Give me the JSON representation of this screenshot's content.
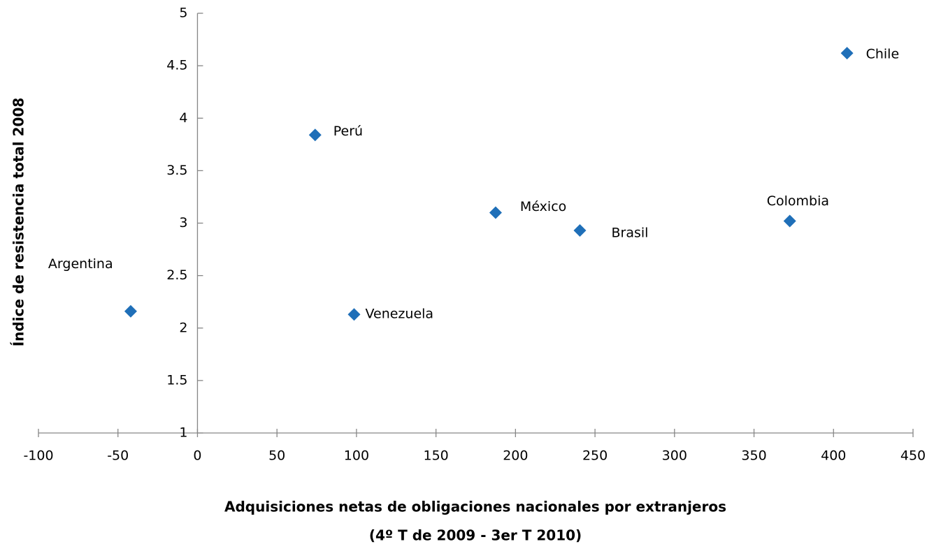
{
  "chart_data": {
    "type": "scatter",
    "xlabel": [
      "Adquisiciones netas de obligaciones nacionales por extranjeros",
      "(4º T de 2009 - 3er T 2010)"
    ],
    "ylabel": "Índice de resistencia total 2008",
    "x": [
      -42,
      74,
      98.5,
      187.5,
      240.5,
      372.5,
      408.5
    ],
    "values": [
      2.16,
      3.84,
      2.13,
      3.1,
      2.93,
      3.02,
      4.62
    ],
    "point_labels": [
      "Argentina",
      "Perú",
      "Venezuela",
      "México",
      "Brasil",
      "Colombia",
      "Chile"
    ],
    "color": "#1f6fb8",
    "xlim": [
      -100,
      450
    ],
    "xticks": [
      -100,
      -50,
      0,
      50,
      100,
      150,
      200,
      250,
      300,
      350,
      400,
      450
    ],
    "ylim": [
      1,
      5
    ],
    "yticks": [
      1,
      1.5,
      2,
      2.5,
      3,
      3.5,
      4,
      4.5,
      5
    ]
  }
}
